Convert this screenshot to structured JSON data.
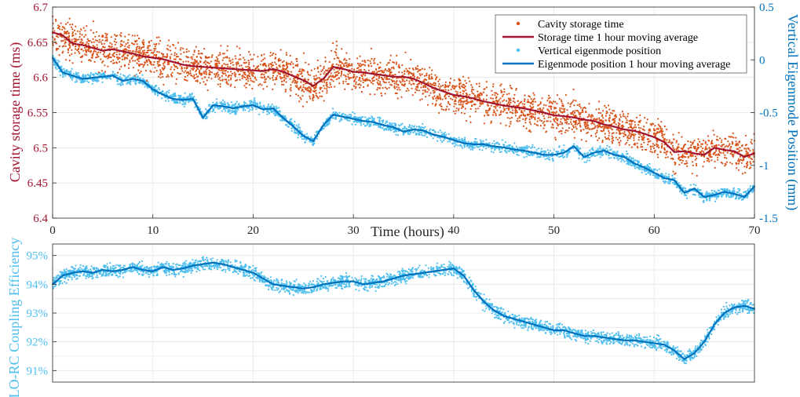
{
  "colors": {
    "storage_points": "#d95319",
    "storage_avg": "#a2142f",
    "eigen_points": "#4dbeee",
    "eigen_avg": "#0072bd",
    "grid": "#e6e6e6",
    "axis": "#262626"
  },
  "chart_data": [
    {
      "type": "scatter",
      "xlabel": "Time (hours)",
      "ylabel": "Cavity storage time (ms)",
      "y2label": "Vertical Eigenmode Position (mm)",
      "xlim": [
        0,
        70
      ],
      "ylim": [
        6.4,
        6.7
      ],
      "y2lim": [
        -1.5,
        0.5
      ],
      "x_ticks": [
        "0",
        "10",
        "20",
        "30",
        "40",
        "50",
        "60",
        "70"
      ],
      "y_ticks": [
        "6.4",
        "6.45",
        "6.5",
        "6.55",
        "6.6",
        "6.65",
        "6.7"
      ],
      "y2_ticks": [
        "-1.5",
        "-1",
        "-0.5",
        "0",
        "0.5"
      ],
      "grid": true,
      "legend_position": "top-right",
      "series": [
        {
          "name": "Cavity storage time",
          "kind": "scatter",
          "axis": "left",
          "x": [
            0,
            1,
            2,
            3,
            4,
            5,
            6,
            7,
            8,
            9,
            10,
            11,
            12,
            13,
            14,
            15,
            16,
            17,
            18,
            19,
            20,
            21,
            22,
            23,
            24,
            25,
            26,
            27,
            28,
            29,
            30,
            31,
            32,
            33,
            34,
            35,
            36,
            37,
            38,
            39,
            40,
            41,
            42,
            43,
            44,
            45,
            46,
            47,
            48,
            49,
            50,
            51,
            52,
            53,
            54,
            55,
            56,
            57,
            58,
            59,
            60,
            61,
            62,
            63,
            64,
            65,
            66,
            67,
            68,
            69,
            70
          ],
          "values": [
            6.664,
            6.66,
            6.648,
            6.646,
            6.642,
            6.638,
            6.64,
            6.637,
            6.634,
            6.63,
            6.628,
            6.626,
            6.622,
            6.618,
            6.616,
            6.615,
            6.614,
            6.613,
            6.612,
            6.611,
            6.61,
            6.609,
            6.612,
            6.608,
            6.602,
            6.596,
            6.588,
            6.598,
            6.615,
            6.612,
            6.608,
            6.607,
            6.605,
            6.603,
            6.601,
            6.601,
            6.598,
            6.592,
            6.585,
            6.58,
            6.575,
            6.573,
            6.57,
            6.566,
            6.563,
            6.56,
            6.558,
            6.556,
            6.553,
            6.55,
            6.546,
            6.545,
            6.543,
            6.54,
            6.538,
            6.533,
            6.53,
            6.526,
            6.524,
            6.52,
            6.515,
            6.508,
            6.494,
            6.495,
            6.492,
            6.49,
            6.5,
            6.497,
            6.495,
            6.487,
            6.492
          ]
        },
        {
          "name": "Storage time 1 hour moving average",
          "kind": "line",
          "axis": "left",
          "x": [
            0,
            1,
            2,
            3,
            4,
            5,
            6,
            7,
            8,
            9,
            10,
            11,
            12,
            13,
            14,
            15,
            16,
            17,
            18,
            19,
            20,
            21,
            22,
            23,
            24,
            25,
            26,
            27,
            28,
            29,
            30,
            31,
            32,
            33,
            34,
            35,
            36,
            37,
            38,
            39,
            40,
            41,
            42,
            43,
            44,
            45,
            46,
            47,
            48,
            49,
            50,
            51,
            52,
            53,
            54,
            55,
            56,
            57,
            58,
            59,
            60,
            61,
            62,
            63,
            64,
            65,
            66,
            67,
            68,
            69,
            70
          ],
          "values": [
            6.664,
            6.66,
            6.648,
            6.646,
            6.642,
            6.638,
            6.64,
            6.637,
            6.634,
            6.63,
            6.628,
            6.626,
            6.622,
            6.618,
            6.616,
            6.615,
            6.614,
            6.613,
            6.612,
            6.611,
            6.61,
            6.609,
            6.612,
            6.608,
            6.602,
            6.596,
            6.588,
            6.598,
            6.615,
            6.612,
            6.608,
            6.607,
            6.605,
            6.603,
            6.601,
            6.601,
            6.598,
            6.592,
            6.585,
            6.58,
            6.575,
            6.573,
            6.57,
            6.566,
            6.563,
            6.56,
            6.558,
            6.556,
            6.553,
            6.55,
            6.546,
            6.545,
            6.543,
            6.54,
            6.538,
            6.533,
            6.53,
            6.526,
            6.524,
            6.52,
            6.515,
            6.508,
            6.494,
            6.495,
            6.492,
            6.49,
            6.5,
            6.497,
            6.495,
            6.487,
            6.492
          ]
        },
        {
          "name": "Vertical eigenmode position",
          "kind": "scatter",
          "axis": "right",
          "x": [
            0,
            1,
            2,
            3,
            4,
            5,
            6,
            7,
            8,
            9,
            10,
            11,
            12,
            13,
            14,
            15,
            16,
            17,
            18,
            19,
            20,
            21,
            22,
            23,
            24,
            25,
            26,
            27,
            28,
            29,
            30,
            31,
            32,
            33,
            34,
            35,
            36,
            37,
            38,
            39,
            40,
            41,
            42,
            43,
            44,
            45,
            46,
            47,
            48,
            49,
            50,
            51,
            52,
            53,
            54,
            55,
            56,
            57,
            58,
            59,
            60,
            61,
            62,
            63,
            64,
            65,
            66,
            67,
            68,
            69,
            70
          ],
          "values": [
            0.02,
            -0.12,
            -0.15,
            -0.18,
            -0.17,
            -0.16,
            -0.15,
            -0.2,
            -0.18,
            -0.2,
            -0.28,
            -0.33,
            -0.37,
            -0.38,
            -0.37,
            -0.55,
            -0.43,
            -0.44,
            -0.46,
            -0.44,
            -0.43,
            -0.47,
            -0.46,
            -0.55,
            -0.63,
            -0.72,
            -0.77,
            -0.62,
            -0.52,
            -0.54,
            -0.56,
            -0.58,
            -0.59,
            -0.62,
            -0.64,
            -0.68,
            -0.66,
            -0.67,
            -0.71,
            -0.73,
            -0.76,
            -0.79,
            -0.8,
            -0.8,
            -0.82,
            -0.83,
            -0.85,
            -0.86,
            -0.88,
            -0.9,
            -0.9,
            -0.88,
            -0.82,
            -0.92,
            -0.88,
            -0.86,
            -0.9,
            -0.92,
            -0.98,
            -1.02,
            -1.07,
            -1.12,
            -1.14,
            -1.26,
            -1.22,
            -1.3,
            -1.28,
            -1.25,
            -1.27,
            -1.3,
            -1.2
          ]
        },
        {
          "name": "Eigenmode position 1 hour moving average",
          "kind": "line",
          "axis": "right",
          "x": [
            0,
            1,
            2,
            3,
            4,
            5,
            6,
            7,
            8,
            9,
            10,
            11,
            12,
            13,
            14,
            15,
            16,
            17,
            18,
            19,
            20,
            21,
            22,
            23,
            24,
            25,
            26,
            27,
            28,
            29,
            30,
            31,
            32,
            33,
            34,
            35,
            36,
            37,
            38,
            39,
            40,
            41,
            42,
            43,
            44,
            45,
            46,
            47,
            48,
            49,
            50,
            51,
            52,
            53,
            54,
            55,
            56,
            57,
            58,
            59,
            60,
            61,
            62,
            63,
            64,
            65,
            66,
            67,
            68,
            69,
            70
          ],
          "values": [
            0.02,
            -0.12,
            -0.15,
            -0.18,
            -0.17,
            -0.16,
            -0.15,
            -0.2,
            -0.18,
            -0.2,
            -0.28,
            -0.33,
            -0.37,
            -0.38,
            -0.37,
            -0.55,
            -0.43,
            -0.44,
            -0.46,
            -0.44,
            -0.43,
            -0.47,
            -0.46,
            -0.55,
            -0.63,
            -0.72,
            -0.77,
            -0.62,
            -0.52,
            -0.54,
            -0.56,
            -0.58,
            -0.59,
            -0.62,
            -0.64,
            -0.68,
            -0.66,
            -0.67,
            -0.71,
            -0.73,
            -0.76,
            -0.79,
            -0.8,
            -0.8,
            -0.82,
            -0.83,
            -0.85,
            -0.86,
            -0.88,
            -0.9,
            -0.9,
            -0.88,
            -0.82,
            -0.92,
            -0.88,
            -0.86,
            -0.9,
            -0.92,
            -0.98,
            -1.02,
            -1.07,
            -1.12,
            -1.14,
            -1.26,
            -1.22,
            -1.3,
            -1.28,
            -1.25,
            -1.27,
            -1.3,
            -1.2
          ]
        }
      ]
    },
    {
      "type": "scatter",
      "ylabel": "LO-RC Coupling Efficiency",
      "xlim": [
        0,
        70
      ],
      "ylim": [
        90.6,
        95.4
      ],
      "y_ticks": [
        "91%",
        "92%",
        "93%",
        "94%",
        "95%"
      ],
      "grid": true,
      "series": [
        {
          "kind": "scatter",
          "x": [
            0,
            1,
            2,
            3,
            4,
            5,
            6,
            7,
            8,
            9,
            10,
            11,
            12,
            13,
            14,
            15,
            16,
            17,
            18,
            19,
            20,
            21,
            22,
            23,
            24,
            25,
            26,
            27,
            28,
            29,
            30,
            31,
            32,
            33,
            34,
            35,
            36,
            37,
            38,
            39,
            40,
            41,
            42,
            43,
            44,
            45,
            46,
            47,
            48,
            49,
            50,
            51,
            52,
            53,
            54,
            55,
            56,
            57,
            58,
            59,
            60,
            61,
            62,
            63,
            64,
            65,
            66,
            67,
            68,
            69,
            70
          ],
          "values": [
            94.0,
            94.3,
            94.4,
            94.45,
            94.4,
            94.5,
            94.45,
            94.5,
            94.6,
            94.5,
            94.45,
            94.6,
            94.5,
            94.55,
            94.65,
            94.7,
            94.75,
            94.7,
            94.6,
            94.5,
            94.4,
            94.2,
            94.0,
            93.95,
            93.9,
            93.85,
            93.9,
            94.0,
            94.05,
            94.1,
            94.1,
            94.0,
            94.05,
            94.1,
            94.2,
            94.3,
            94.35,
            94.4,
            94.45,
            94.5,
            94.55,
            94.3,
            93.8,
            93.4,
            93.1,
            92.9,
            92.8,
            92.7,
            92.6,
            92.5,
            92.4,
            92.4,
            92.3,
            92.2,
            92.2,
            92.15,
            92.1,
            92.05,
            92.05,
            92.0,
            91.95,
            91.9,
            91.7,
            91.4,
            91.6,
            92.0,
            92.6,
            93.0,
            93.2,
            93.25,
            93.15
          ]
        },
        {
          "kind": "line",
          "x": [
            0,
            1,
            2,
            3,
            4,
            5,
            6,
            7,
            8,
            9,
            10,
            11,
            12,
            13,
            14,
            15,
            16,
            17,
            18,
            19,
            20,
            21,
            22,
            23,
            24,
            25,
            26,
            27,
            28,
            29,
            30,
            31,
            32,
            33,
            34,
            35,
            36,
            37,
            38,
            39,
            40,
            41,
            42,
            43,
            44,
            45,
            46,
            47,
            48,
            49,
            50,
            51,
            52,
            53,
            54,
            55,
            56,
            57,
            58,
            59,
            60,
            61,
            62,
            63,
            64,
            65,
            66,
            67,
            68,
            69,
            70
          ],
          "values": [
            94.0,
            94.3,
            94.4,
            94.45,
            94.4,
            94.5,
            94.45,
            94.5,
            94.6,
            94.5,
            94.45,
            94.6,
            94.5,
            94.55,
            94.65,
            94.7,
            94.75,
            94.7,
            94.6,
            94.5,
            94.4,
            94.2,
            94.0,
            93.95,
            93.9,
            93.85,
            93.9,
            94.0,
            94.05,
            94.1,
            94.1,
            94.0,
            94.05,
            94.1,
            94.2,
            94.3,
            94.35,
            94.4,
            94.45,
            94.5,
            94.55,
            94.3,
            93.8,
            93.4,
            93.1,
            92.9,
            92.8,
            92.7,
            92.6,
            92.5,
            92.4,
            92.4,
            92.3,
            92.2,
            92.2,
            92.15,
            92.1,
            92.05,
            92.05,
            92.0,
            91.95,
            91.9,
            91.7,
            91.4,
            91.6,
            92.0,
            92.6,
            93.0,
            93.2,
            93.25,
            93.15
          ]
        }
      ]
    }
  ]
}
